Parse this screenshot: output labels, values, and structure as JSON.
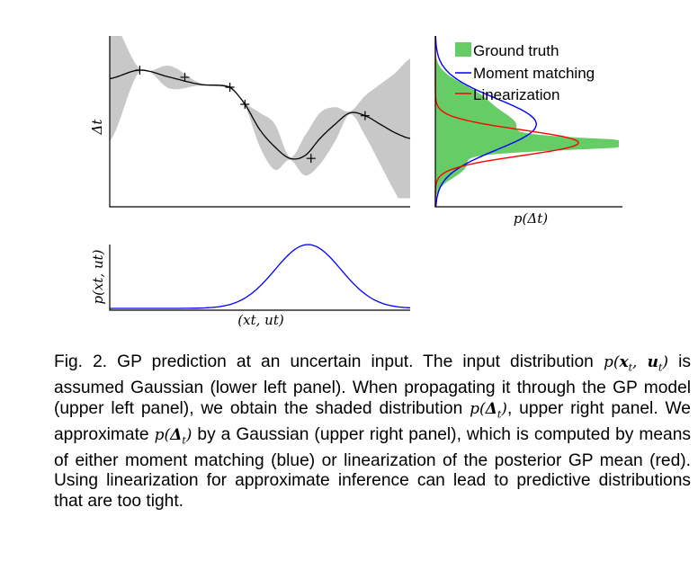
{
  "colors": {
    "gp_band": "#c8c8c8",
    "ground_truth": "#66cc66",
    "moment_matching": "#0000ff",
    "linearization": "#ff0000",
    "input_density": "#0000ff"
  },
  "panels": {
    "upper_left": {
      "ylabel": "Δt",
      "ylabel_sub": "t"
    },
    "upper_right": {
      "xlabel": "p(Δt)",
      "legend": {
        "placement": "top-left",
        "items": [
          {
            "label": "Ground truth",
            "kind": "patch"
          },
          {
            "label": "Moment matching",
            "kind": "line"
          },
          {
            "label": "Linearization",
            "kind": "line"
          }
        ]
      }
    },
    "lower_left": {
      "xlabel": "(xt, ut)",
      "ylabel": "p(xt, ut)"
    }
  },
  "chart_data": [
    {
      "type": "line",
      "panel": "upper_left",
      "xlim": [
        0,
        10
      ],
      "ylim": [
        -3,
        3
      ],
      "series": [
        {
          "x": [
            0,
            1,
            2,
            3,
            4,
            4.5,
            5,
            5.5,
            6,
            6.5,
            7,
            7.5,
            8,
            8.5,
            9,
            9.5,
            10
          ],
          "mean": [
            1.5,
            1.8,
            1.55,
            1.3,
            1.2,
            0.6,
            -0.3,
            -0.9,
            -1.3,
            -1.2,
            -0.6,
            -0.1,
            0.3,
            0.2,
            -0.1,
            -0.4,
            -0.6
          ],
          "std": [
            2.2,
            0.05,
            0.4,
            0.05,
            0.05,
            0.05,
            0.6,
            0.8,
            0.05,
            0.7,
            0.9,
            0.6,
            0.05,
            0.7,
            1.4,
            2.1,
            2.8
          ]
        }
      ],
      "training_points": {
        "x": [
          1,
          2.5,
          4,
          4.5,
          6.7,
          8.5
        ],
        "y": [
          1.8,
          1.55,
          1.2,
          0.6,
          -1.3,
          0.2
        ]
      }
    },
    {
      "type": "line",
      "panel": "upper_right",
      "series": [
        {
          "name": "Ground truth",
          "kind": "filled",
          "mode": -0.8,
          "peak": 1.0
        },
        {
          "name": "Moment matching",
          "mean": -0.1,
          "std": 0.9,
          "peak": 0.55
        },
        {
          "name": "Linearization",
          "mean": -0.75,
          "std": 0.45,
          "peak": 0.78
        }
      ]
    },
    {
      "type": "line",
      "panel": "lower_left",
      "xlim": [
        0,
        10
      ],
      "series": [
        {
          "name": "p(xt, ut)",
          "mean": 6.6,
          "std": 1.1,
          "peak": 1.0
        }
      ]
    }
  ],
  "caption": {
    "prefix": "Fig. 2. GP prediction at an uncertain input. The input distribution",
    "mid1": "is assumed Gaussian (lower left panel). When propagating it through the GP model (upper left panel), we obtain the shaded distribution",
    "mid2": ", upper right panel. We approximate",
    "rest": "by a Gaussian (upper right panel), which is computed by means of either moment matching (blue) or linearization of the posterior GP mean (red). Using linearization for approximate inference can lead to predictive distributions that are too tight."
  }
}
